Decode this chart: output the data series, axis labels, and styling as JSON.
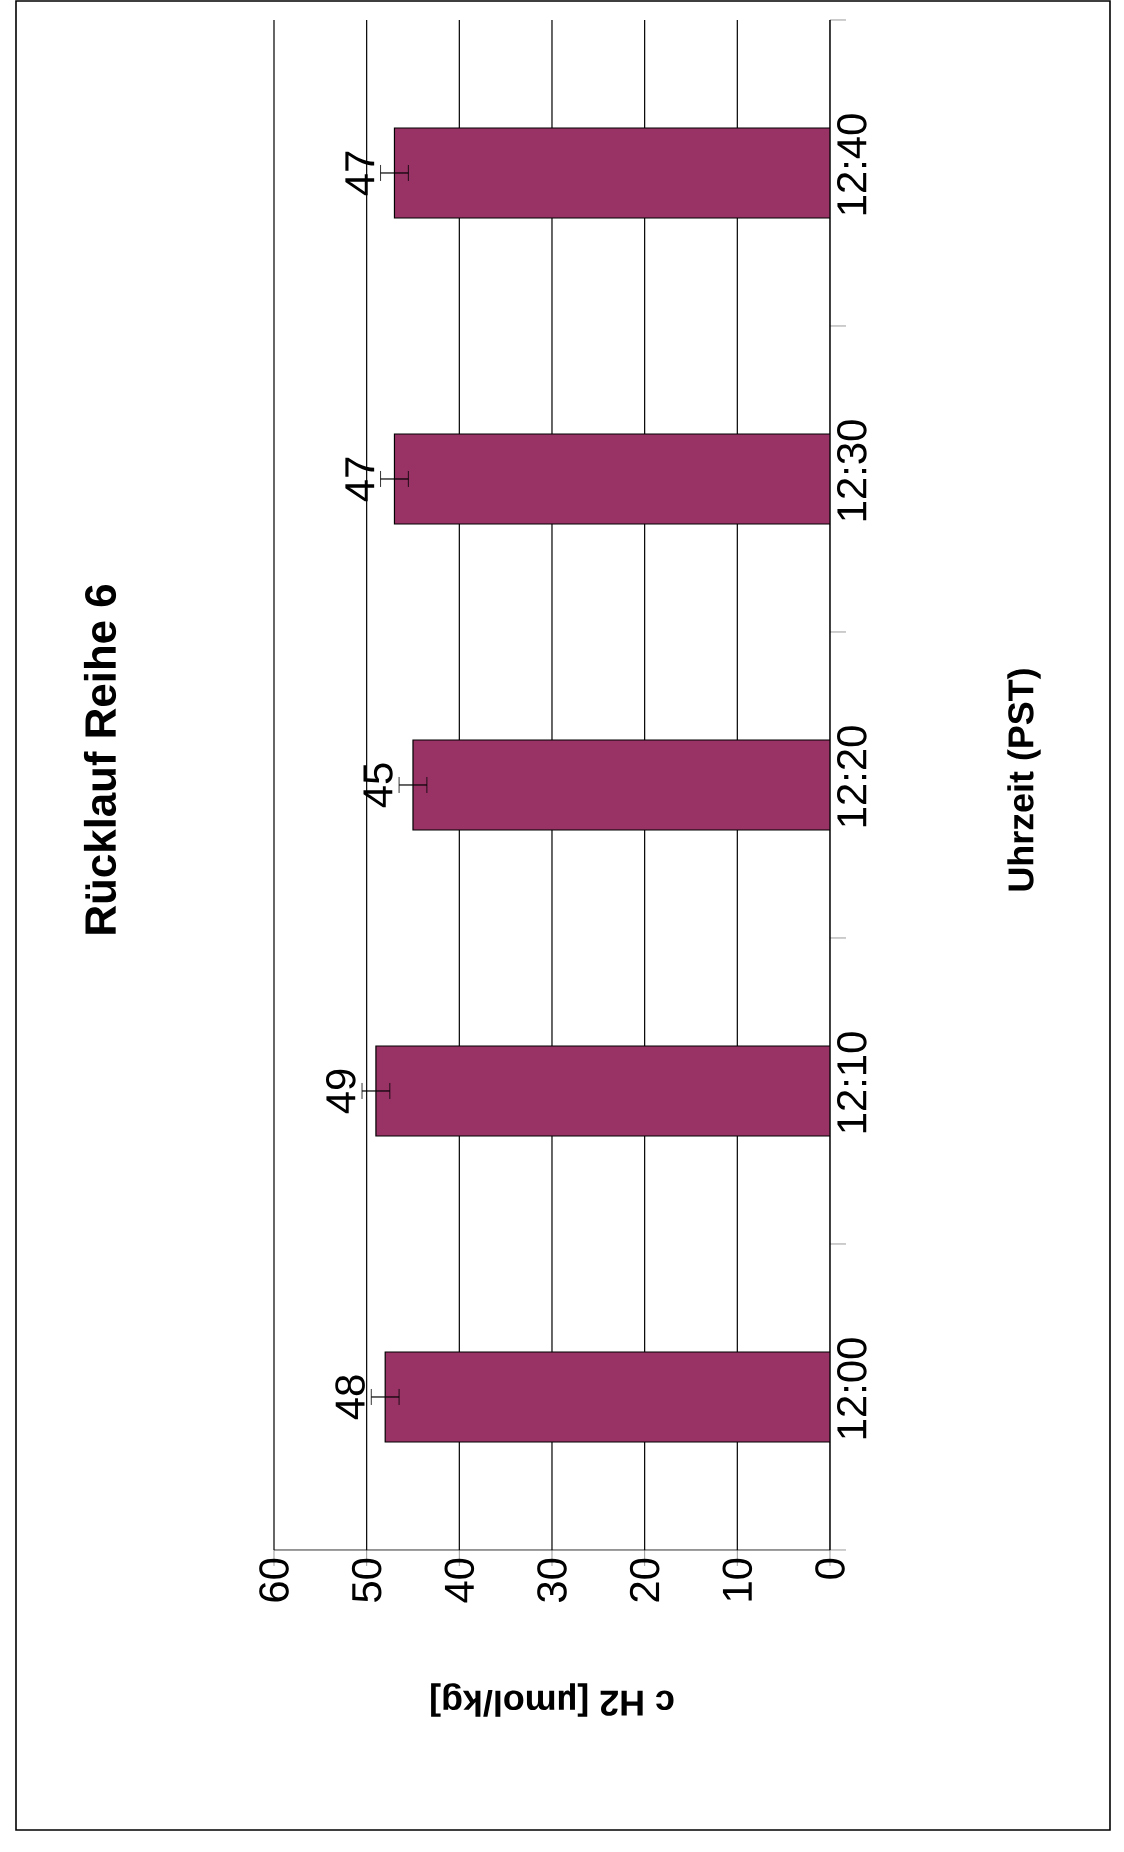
{
  "chart_data": {
    "type": "bar",
    "orientation": "horizontal",
    "title": "Rücklauf Reihe 6",
    "xlabel": "c H2 [µmol/kg]",
    "ylabel": "Uhrzeit (PST)",
    "categories": [
      "12:40",
      "12:30",
      "12:20",
      "12:10",
      "12:00"
    ],
    "values": [
      47,
      47,
      45,
      49,
      48
    ],
    "errors": [
      1.5,
      1.5,
      1.5,
      1.5,
      1.5
    ],
    "color": "#993366",
    "xlim": [
      60,
      0
    ],
    "xticks": [
      0,
      10,
      20,
      30,
      40,
      50,
      60
    ],
    "grid": "x",
    "data_labels": true
  }
}
